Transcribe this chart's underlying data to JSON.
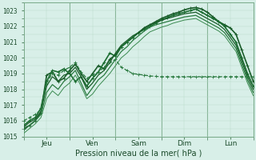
{
  "xlabel": "Pression niveau de la mer( hPa )",
  "ylim": [
    1015,
    1023.5
  ],
  "xlim": [
    0,
    120
  ],
  "bg_color": "#d8efe8",
  "grid_color_minor": "#b8d8c8",
  "grid_color_major": "#98b8a8",
  "day_ticks": [
    12,
    36,
    60,
    84,
    108
  ],
  "day_labels": [
    "Jeu",
    "Ven",
    "Sam",
    "Dim",
    "Lun"
  ],
  "day_vlines": [
    24,
    48,
    72,
    96
  ],
  "yticks": [
    1015,
    1016,
    1017,
    1018,
    1019,
    1020,
    1021,
    1022,
    1023
  ],
  "series": [
    {
      "x": [
        0,
        3,
        6,
        9,
        12,
        15,
        18,
        21,
        24,
        27,
        30,
        33,
        36,
        39,
        42,
        45,
        48,
        51,
        54,
        57,
        60,
        63,
        66,
        69,
        72,
        75,
        78,
        81,
        84,
        87,
        90,
        93,
        96,
        99,
        102,
        105,
        108,
        111,
        114,
        117,
        120
      ],
      "y": [
        1015.5,
        1015.7,
        1016.0,
        1016.5,
        1018.9,
        1019.1,
        1018.5,
        1018.7,
        1019.2,
        1019.6,
        1019.0,
        1018.5,
        1019.0,
        1019.5,
        1019.3,
        1019.9,
        1020.2,
        1020.7,
        1021.0,
        1021.3,
        1021.6,
        1021.9,
        1022.1,
        1022.3,
        1022.5,
        1022.65,
        1022.8,
        1022.9,
        1023.05,
        1023.15,
        1023.2,
        1023.1,
        1022.9,
        1022.6,
        1022.3,
        1022.1,
        1021.9,
        1021.5,
        1020.5,
        1019.5,
        1018.5
      ],
      "style": "-",
      "color": "#1a5c2a",
      "lw": 1.2,
      "marker": "+"
    },
    {
      "x": [
        0,
        3,
        6,
        9,
        12,
        15,
        18,
        21,
        24,
        27,
        30,
        33,
        36,
        39,
        42,
        45,
        48,
        51,
        54,
        57,
        60,
        63,
        66,
        69,
        72,
        75,
        78,
        81,
        84,
        87,
        90,
        93,
        96,
        99,
        102,
        105,
        108,
        111,
        114,
        117,
        120
      ],
      "y": [
        1015.7,
        1016.0,
        1016.2,
        1016.8,
        1018.5,
        1019.2,
        1019.1,
        1019.3,
        1019.0,
        1018.5,
        1018.8,
        1018.2,
        1018.7,
        1019.1,
        1019.7,
        1020.3,
        1020.1,
        1020.7,
        1021.0,
        1021.3,
        1021.6,
        1021.8,
        1022.0,
        1022.2,
        1022.4,
        1022.55,
        1022.7,
        1022.8,
        1022.9,
        1023.0,
        1023.1,
        1022.9,
        1022.7,
        1022.5,
        1022.3,
        1022.0,
        1021.5,
        1021.0,
        1020.0,
        1019.0,
        1018.2
      ],
      "style": "-",
      "color": "#1a6c30",
      "lw": 1.2,
      "marker": "+"
    },
    {
      "x": [
        0,
        3,
        6,
        9,
        12,
        15,
        18,
        21,
        24,
        27,
        30,
        33,
        36,
        39,
        42,
        45,
        48,
        51,
        54,
        57,
        60,
        63,
        66,
        69,
        72,
        75,
        78,
        81,
        84,
        87,
        90,
        93,
        96,
        99,
        102,
        105,
        108,
        111,
        114,
        117,
        120
      ],
      "y": [
        1015.6,
        1015.9,
        1016.1,
        1016.6,
        1018.2,
        1018.8,
        1018.5,
        1018.9,
        1019.0,
        1019.4,
        1018.8,
        1018.0,
        1018.4,
        1018.9,
        1019.2,
        1019.7,
        1020.3,
        1020.8,
        1021.1,
        1021.4,
        1021.6,
        1021.9,
        1022.1,
        1022.25,
        1022.4,
        1022.5,
        1022.6,
        1022.7,
        1022.8,
        1022.85,
        1022.9,
        1022.7,
        1022.5,
        1022.3,
        1022.1,
        1021.8,
        1021.3,
        1020.8,
        1019.8,
        1018.8,
        1018.0
      ],
      "style": "-",
      "color": "#1a5c2a",
      "lw": 0.9,
      "marker": null
    },
    {
      "x": [
        0,
        3,
        6,
        9,
        12,
        15,
        18,
        21,
        24,
        27,
        30,
        33,
        36,
        39,
        42,
        45,
        48,
        51,
        54,
        57,
        60,
        63,
        66,
        69,
        72,
        75,
        78,
        81,
        84,
        87,
        90,
        93,
        96,
        99,
        102,
        105,
        108,
        111,
        114,
        117,
        120
      ],
      "y": [
        1015.4,
        1015.7,
        1016.0,
        1016.4,
        1017.8,
        1018.3,
        1018.0,
        1018.5,
        1018.8,
        1019.2,
        1018.4,
        1017.6,
        1018.1,
        1018.6,
        1018.9,
        1019.4,
        1019.9,
        1020.4,
        1020.7,
        1021.1,
        1021.4,
        1021.7,
        1021.95,
        1022.1,
        1022.2,
        1022.3,
        1022.4,
        1022.5,
        1022.6,
        1022.65,
        1022.7,
        1022.5,
        1022.3,
        1022.1,
        1021.9,
        1021.6,
        1021.1,
        1020.6,
        1019.6,
        1018.6,
        1017.8
      ],
      "style": "-",
      "color": "#2a7a40",
      "lw": 0.9,
      "marker": null
    },
    {
      "x": [
        0,
        3,
        6,
        9,
        12,
        15,
        18,
        21,
        24,
        27,
        30,
        33,
        36,
        39,
        42,
        45,
        48,
        51,
        54,
        57,
        60,
        63,
        66,
        69,
        72,
        75,
        78,
        81,
        84,
        87,
        90,
        93,
        96,
        99,
        102,
        105,
        108,
        111,
        114,
        117,
        120
      ],
      "y": [
        1015.2,
        1015.5,
        1015.8,
        1016.2,
        1017.4,
        1017.9,
        1017.6,
        1018.1,
        1018.4,
        1018.9,
        1018.2,
        1017.4,
        1017.7,
        1018.2,
        1018.6,
        1019.0,
        1019.5,
        1020.0,
        1020.3,
        1020.7,
        1021.0,
        1021.35,
        1021.65,
        1021.8,
        1021.95,
        1022.05,
        1022.2,
        1022.3,
        1022.4,
        1022.45,
        1022.5,
        1022.3,
        1022.1,
        1021.9,
        1021.7,
        1021.4,
        1020.9,
        1020.4,
        1019.4,
        1018.4,
        1017.6
      ],
      "style": "-",
      "color": "#3a8a50",
      "lw": 0.7,
      "marker": null
    },
    {
      "x": [
        0,
        3,
        6,
        9,
        12,
        15,
        18,
        21,
        24,
        27,
        30,
        33,
        36,
        39,
        42,
        45,
        48,
        51,
        54,
        57,
        60,
        63,
        66,
        69,
        72,
        75,
        78,
        81,
        84,
        87,
        90,
        93,
        96,
        99,
        102,
        105,
        108,
        111,
        114,
        117,
        120
      ],
      "y": [
        1016.0,
        1016.2,
        1016.4,
        1016.7,
        1018.4,
        1019.0,
        1018.9,
        1019.2,
        1019.4,
        1019.7,
        1019.1,
        1018.7,
        1018.9,
        1019.1,
        1019.4,
        1019.7,
        1019.9,
        1019.4,
        1019.2,
        1019.0,
        1018.95,
        1018.9,
        1018.85,
        1018.82,
        1018.8,
        1018.8,
        1018.8,
        1018.8,
        1018.8,
        1018.8,
        1018.8,
        1018.8,
        1018.8,
        1018.8,
        1018.8,
        1018.8,
        1018.8,
        1018.8,
        1018.8,
        1018.8,
        1018.8
      ],
      "style": "--",
      "color": "#2a7a40",
      "lw": 0.9,
      "marker": "+"
    }
  ]
}
